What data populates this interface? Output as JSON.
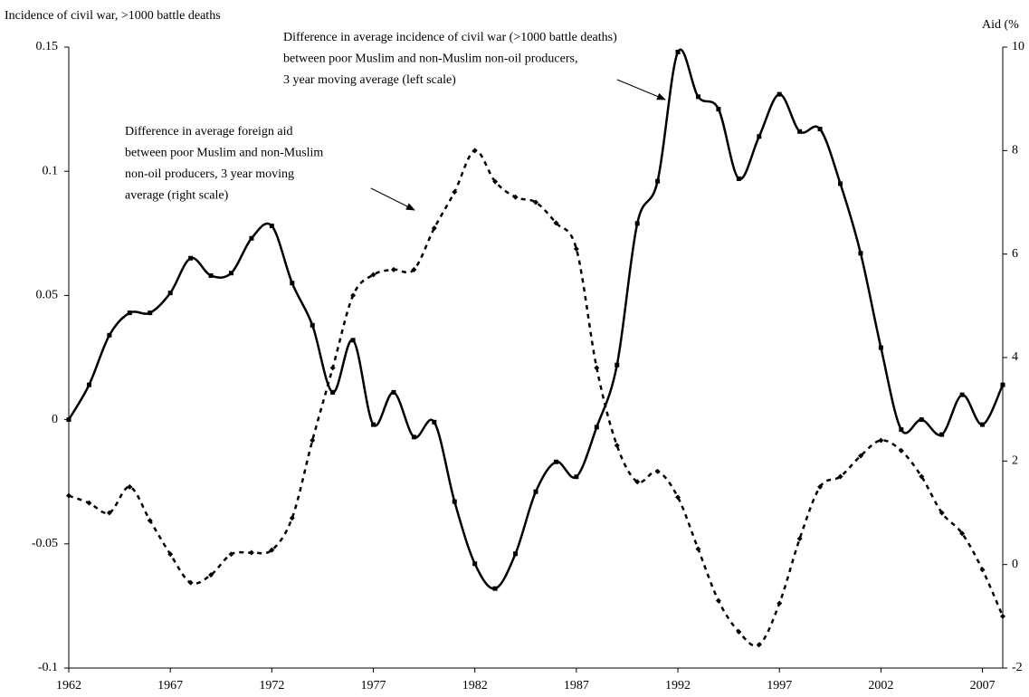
{
  "chart_data": {
    "type": "line",
    "y_label": "Incidence of civil war, >1000 battle deaths",
    "y2_label": "Aid (%",
    "x": [
      1962,
      1963,
      1964,
      1965,
      1966,
      1967,
      1968,
      1969,
      1970,
      1971,
      1972,
      1973,
      1974,
      1975,
      1976,
      1977,
      1978,
      1979,
      1980,
      1981,
      1982,
      1983,
      1984,
      1985,
      1986,
      1987,
      1988,
      1989,
      1990,
      1991,
      1992,
      1993,
      1994,
      1995,
      1996,
      1997,
      1998,
      1999,
      2000,
      2001,
      2002,
      2003,
      2004,
      2005,
      2006,
      2007,
      2008
    ],
    "series": [
      {
        "name": "Incidence of civil war",
        "color": "#000000",
        "style": "solid",
        "marker": "square",
        "values": [
          0,
          0.014,
          0.034,
          0.043,
          0.043,
          0.051,
          0.065,
          0.058,
          0.059,
          0.073,
          0.078,
          0.055,
          0.038,
          0.011,
          0.032,
          -0.002,
          0.011,
          -0.007,
          -0.001,
          -0.033,
          -0.058,
          -0.068,
          -0.054,
          -0.029,
          -0.017,
          -0.023,
          -0.003,
          0.022,
          0.079,
          0.096,
          0.148,
          0.13,
          0.125,
          0.097,
          0.114,
          0.131,
          0.116,
          0.117,
          0.095,
          0.067,
          0.029,
          -0.004,
          0.0,
          -0.006,
          0.01,
          -0.002,
          0.014
        ]
      },
      {
        "name": "Aid",
        "color": "#000000",
        "style": "dotted",
        "marker": "diamond",
        "axis": "y2",
        "values": [
          1.33,
          1.19,
          1.0,
          1.5,
          0.85,
          0.2,
          -0.35,
          -0.2,
          0.2,
          0.23,
          0.28,
          0.9,
          2.4,
          3.8,
          5.2,
          5.6,
          5.7,
          5.7,
          6.5,
          7.2,
          8.0,
          7.4,
          7.1,
          7.0,
          6.6,
          6.1,
          3.8,
          2.3,
          1.6,
          1.8,
          1.3,
          0.3,
          -0.7,
          -1.3,
          -1.55,
          -0.75,
          0.5,
          1.5,
          1.7,
          2.1,
          2.4,
          2.2,
          1.7,
          1.0,
          0.6,
          -0.1,
          -1.0
        ]
      }
    ],
    "xlim": [
      1962,
      2008
    ],
    "xticks": [
      1962,
      1967,
      1972,
      1977,
      1982,
      1987,
      1992,
      1997,
      2002,
      2007
    ],
    "ylim": [
      -0.1,
      0.15
    ],
    "yticks": [
      0.15,
      0.1,
      0.05,
      0,
      -0.05,
      -0.1
    ],
    "y2lim": [
      -2,
      10
    ],
    "y2ticks": [
      10,
      8,
      6,
      4,
      2,
      0,
      -2
    ],
    "annotations": [
      {
        "lines": [
          "Difference in average incidence of civil war (>1000 battle deaths)",
          "between poor Muslim and non-Muslim non-oil producers,",
          "3 year moving average (left scale)"
        ]
      },
      {
        "lines": [
          "Difference in average foreign aid",
          "between poor Muslim and non-Muslim",
          "non-oil producers, 3 year moving",
          "average (right scale)"
        ]
      }
    ]
  }
}
